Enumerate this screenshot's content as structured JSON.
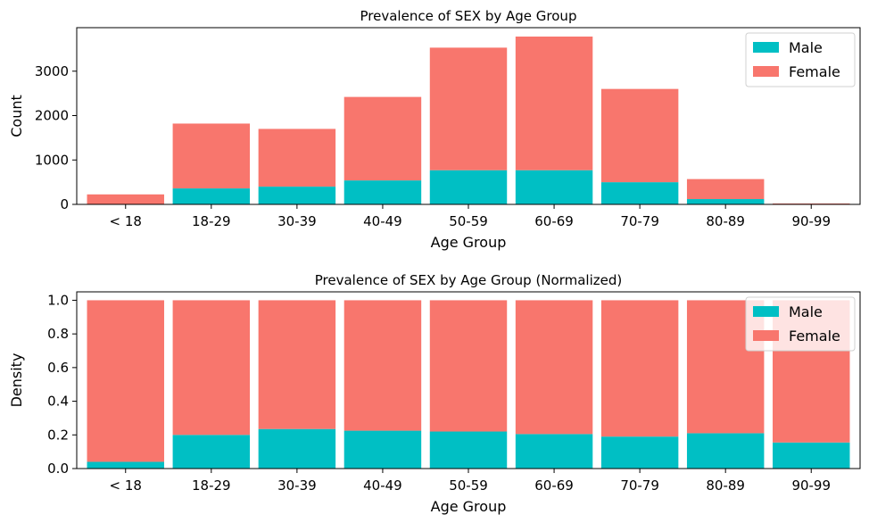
{
  "colors": {
    "male": "#00BFC4",
    "female": "#F8766D"
  },
  "chart_data": [
    {
      "type": "bar",
      "stacked": true,
      "title": "Prevalence of SEX by Age Group",
      "xlabel": "Age Group",
      "ylabel": "Count",
      "categories": [
        "< 18",
        "18-29",
        "30-39",
        "40-49",
        "50-59",
        "60-69",
        "70-79",
        "80-89",
        "90-99"
      ],
      "series": [
        {
          "name": "Male",
          "values": [
            10,
            360,
            400,
            540,
            770,
            770,
            500,
            120,
            2
          ]
        },
        {
          "name": "Female",
          "values": [
            215,
            1460,
            1300,
            1880,
            2760,
            3010,
            2100,
            450,
            18
          ]
        }
      ],
      "ylim": [
        0,
        3980
      ],
      "yticks": [
        0,
        1000,
        2000,
        3000
      ],
      "legend": "top-right",
      "grid": false
    },
    {
      "type": "bar",
      "stacked": true,
      "title": "Prevalence of SEX by Age Group (Normalized)",
      "xlabel": "Age Group",
      "ylabel": "Density",
      "categories": [
        "< 18",
        "18-29",
        "30-39",
        "40-49",
        "50-59",
        "60-69",
        "70-79",
        "80-89",
        "90-99"
      ],
      "series": [
        {
          "name": "Male",
          "values": [
            0.04,
            0.2,
            0.235,
            0.225,
            0.22,
            0.205,
            0.19,
            0.21,
            0.155
          ]
        },
        {
          "name": "Female",
          "values": [
            0.96,
            0.8,
            0.765,
            0.775,
            0.78,
            0.795,
            0.81,
            0.79,
            0.845
          ]
        }
      ],
      "ylim": [
        0,
        1.05
      ],
      "yticks": [
        0.0,
        0.2,
        0.4,
        0.6,
        0.8,
        1.0
      ],
      "ytick_labels": [
        "0.0",
        "0.2",
        "0.4",
        "0.6",
        "0.8",
        "1.0"
      ],
      "legend": "top-right",
      "grid": false
    }
  ]
}
